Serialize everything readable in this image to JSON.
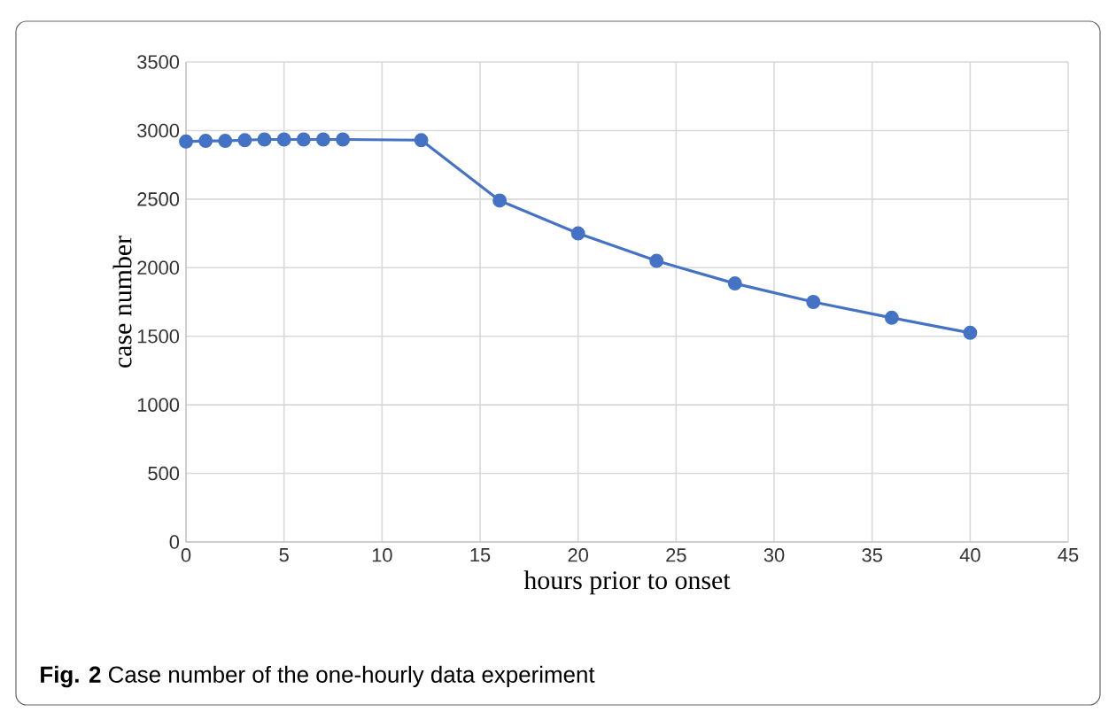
{
  "chart_data": {
    "type": "line",
    "xlabel": "hours prior to onset",
    "ylabel": "case number",
    "annotations": [
      "**Fig. 2**  Case number of the one-hourly data experiment"
    ],
    "x": [
      0,
      1,
      2,
      3,
      4,
      5,
      6,
      7,
      8,
      12,
      16,
      20,
      24,
      28,
      32,
      36,
      40
    ],
    "series": [
      {
        "color": "#4472c4",
        "values": [
          2920,
          2925,
          2925,
          2930,
          2935,
          2935,
          2935,
          2935,
          2935,
          2930,
          2490,
          2250,
          2050,
          1885,
          1750,
          1635,
          1525
        ]
      }
    ],
    "xlim": [
      0,
      45
    ],
    "ylim": [
      0,
      3500
    ],
    "xticks": [
      0,
      5,
      10,
      15,
      20,
      25,
      30,
      35,
      40,
      45
    ],
    "yticks": [
      0,
      500,
      1000,
      1500,
      2000,
      2500,
      3000,
      3500
    ],
    "grid": true,
    "marker": "circle",
    "line_style": "solid"
  }
}
